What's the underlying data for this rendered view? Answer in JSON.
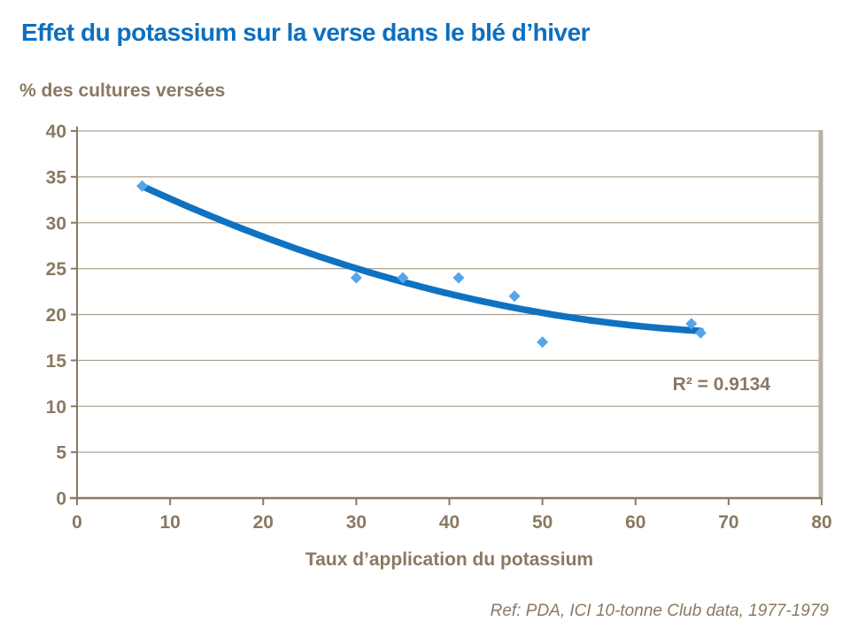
{
  "page": {
    "title": "Effet du potassium sur la verse dans le blé d’hiver",
    "footer_ref": "Ref: PDA, ICI 10-tonne Club data, 1977-1979"
  },
  "colors": {
    "title": "#0d6fc0",
    "axis_text": "#8a7962",
    "gridline": "#afa091",
    "plot_border_right": "#b9b0a5",
    "trend_line": "#0f72c1",
    "marker": "#56a5e8",
    "background": "#ffffff"
  },
  "chart_data": {
    "type": "scatter",
    "title": "Effet du potassium sur la verse dans le blé d’hiver",
    "xlabel": "Taux d’application du potassium",
    "ylabel": "% des cultures versées",
    "xlim": [
      0,
      80
    ],
    "ylim": [
      0,
      40
    ],
    "x_ticks": [
      0,
      10,
      20,
      30,
      40,
      50,
      60,
      70,
      80
    ],
    "y_ticks": [
      0,
      5,
      10,
      15,
      20,
      25,
      30,
      35,
      40
    ],
    "grid": "horizontal",
    "legend": "none",
    "marker_style": "diamond",
    "points": [
      [
        7,
        34
      ],
      [
        30,
        24
      ],
      [
        35,
        24
      ],
      [
        41,
        24
      ],
      [
        47,
        22
      ],
      [
        50,
        17
      ],
      [
        66,
        19
      ],
      [
        67,
        18
      ]
    ],
    "trendline": {
      "type": "polynomial",
      "order": 2,
      "x_range": [
        7,
        67
      ],
      "r2_label": "R² = 0.9134"
    }
  }
}
